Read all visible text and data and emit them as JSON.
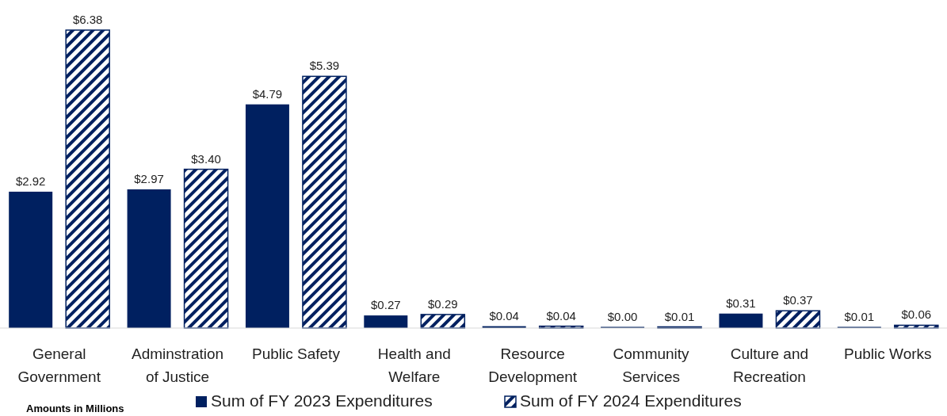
{
  "chart_data": {
    "type": "bar",
    "categories": [
      "General Government",
      "Adminstration of Justice",
      "Public Safety",
      "Health and Welfare",
      "Resource Development",
      "Community Services",
      "Culture and Recreation",
      "Public Works"
    ],
    "series": [
      {
        "name": "Sum of FY 2023 Expenditures",
        "color": "#002060",
        "values": [
          2.92,
          2.97,
          4.79,
          0.27,
          0.04,
          0.0,
          0.31,
          0.01
        ],
        "value_labels": [
          "$2.92",
          "$2.97",
          "$4.79",
          "$0.27",
          "$0.04",
          "$0.00",
          "$0.31",
          "$0.01"
        ]
      },
      {
        "name": "Sum of FY 2024 Expenditures",
        "color": "#002060",
        "values": [
          6.38,
          3.4,
          5.39,
          0.29,
          0.04,
          0.01,
          0.37,
          0.06
        ],
        "value_labels": [
          "$6.38",
          "$3.40",
          "$5.39",
          "$0.29",
          "$0.04",
          "$0.01",
          "$0.37",
          "$0.06"
        ]
      }
    ],
    "legend": "bottom",
    "annotations": [
      "Amounts in Millions"
    ]
  }
}
